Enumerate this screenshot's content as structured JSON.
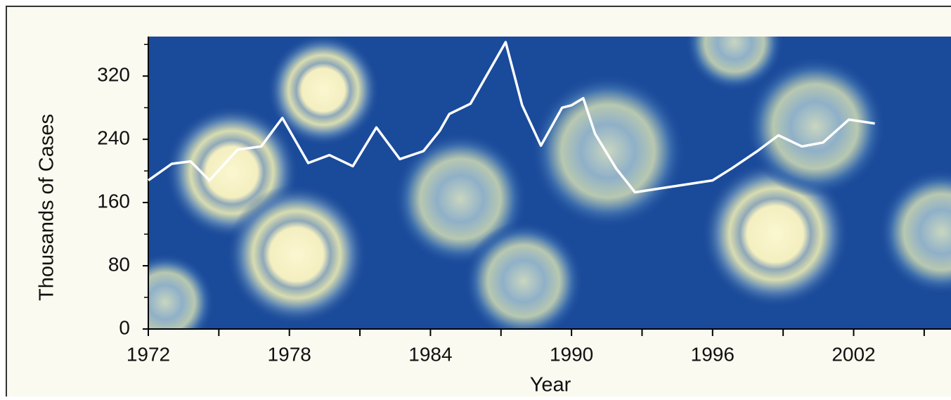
{
  "chart_data": {
    "type": "line",
    "x_label": "Year",
    "y_label": "Thousands of Cases",
    "xlim": [
      1972,
      2006
    ],
    "ylim": [
      0,
      370
    ],
    "xticks": [
      1972,
      1978,
      1984,
      1990,
      1996,
      2002
    ],
    "xminor_ticks": [
      1975,
      1981,
      1987,
      1993,
      1999,
      2005
    ],
    "yticks": [
      0,
      80,
      160,
      240,
      320
    ],
    "yminor_ticks": [
      40,
      120,
      200,
      280,
      360
    ],
    "color": "#ffffff",
    "x": [
      1972.0,
      1973.0,
      1973.8,
      1974.6,
      1975.8,
      1976.8,
      1977.7,
      1978.8,
      1979.7,
      1980.7,
      1981.7,
      1982.7,
      1983.7,
      1984.4,
      1984.8,
      1985.7,
      1987.2,
      1987.9,
      1988.7,
      1989.6,
      1990.0,
      1990.5,
      1991.0,
      1991.9,
      1992.7,
      1996.0,
      1996.8,
      1997.9,
      1998.8,
      1999.8,
      2000.7,
      2001.8,
      2002.9
    ],
    "values": [
      188,
      209,
      212,
      188,
      227,
      231,
      267,
      210,
      220,
      206,
      255,
      215,
      225,
      251,
      272,
      285,
      363,
      283,
      232,
      280,
      283,
      292,
      247,
      203,
      173,
      188,
      203,
      225,
      245,
      231,
      236,
      265,
      260
    ]
  }
}
